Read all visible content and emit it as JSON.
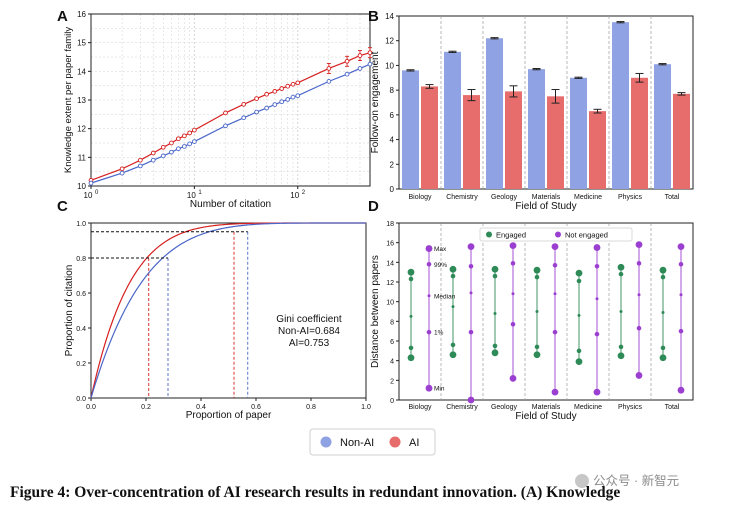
{
  "figure": {
    "caption": "Figure 4:  Over-concentration of AI research results in redundant innovation. (A) Knowledge",
    "watermark": "公众号 · 新智元"
  },
  "colors": {
    "nonai": "#4a66c9",
    "ai": "#d62020",
    "nonai_bar": "#8fa2e3",
    "ai_bar": "#e76c6c",
    "engaged": "#2e8a57",
    "not_engaged": "#9b3fd1",
    "grid": "#d0d0d0",
    "axis": "#222222"
  },
  "legend": {
    "nonai_label": "Non-AI",
    "ai_label": "AI"
  },
  "chart_data": [
    {
      "panel": "A",
      "type": "line",
      "xscale": "log",
      "xlabel": "Number of citation",
      "ylabel": "Knowledge extent per paper family",
      "xlim": [
        1,
        500
      ],
      "ylim": [
        10,
        16
      ],
      "xtick_values": [
        1,
        10,
        100
      ],
      "xtick_labels": [
        "10^0",
        "10^1",
        "10^2"
      ],
      "ytick_labels": [
        "10",
        "11",
        "12",
        "13",
        "14",
        "15",
        "16"
      ],
      "series": [
        {
          "name": "AI",
          "x": [
            1,
            2,
            3,
            4,
            5,
            6,
            7,
            8,
            9,
            10,
            20,
            30,
            40,
            50,
            60,
            70,
            80,
            90,
            100,
            200,
            300,
            400,
            500
          ],
          "y": [
            10.2,
            10.6,
            10.9,
            11.15,
            11.35,
            11.5,
            11.65,
            11.75,
            11.85,
            11.95,
            12.55,
            12.85,
            13.05,
            13.2,
            13.3,
            13.4,
            13.48,
            13.55,
            13.6,
            14.1,
            14.35,
            14.55,
            14.65
          ]
        },
        {
          "name": "Non-AI",
          "x": [
            1,
            2,
            3,
            4,
            5,
            6,
            7,
            8,
            9,
            10,
            20,
            30,
            40,
            50,
            60,
            70,
            80,
            90,
            100,
            200,
            300,
            400,
            500
          ],
          "y": [
            10.1,
            10.45,
            10.7,
            10.9,
            11.05,
            11.18,
            11.3,
            11.38,
            11.47,
            11.55,
            12.1,
            12.38,
            12.58,
            12.72,
            12.84,
            12.94,
            13.02,
            13.1,
            13.15,
            13.65,
            13.9,
            14.1,
            14.25
          ]
        }
      ]
    },
    {
      "panel": "B",
      "type": "bar",
      "xlabel": "Field of Study",
      "ylabel": "Follow-on engagement",
      "ylim": [
        0,
        14
      ],
      "ytick_labels": [
        "0",
        "2",
        "4",
        "6",
        "8",
        "10",
        "12",
        "14"
      ],
      "categories": [
        "Biology",
        "Chemistry",
        "Geology",
        "Materials",
        "Medicine",
        "Physics",
        "Total"
      ],
      "series": [
        {
          "name": "Non-AI",
          "values": [
            9.6,
            11.1,
            12.2,
            9.7,
            9.0,
            13.5,
            10.1
          ],
          "errors": [
            0.05,
            0.05,
            0.05,
            0.05,
            0.05,
            0.05,
            0.05
          ]
        },
        {
          "name": "AI",
          "values": [
            8.3,
            7.6,
            7.9,
            7.5,
            6.3,
            9.0,
            7.7
          ],
          "errors": [
            0.15,
            0.45,
            0.45,
            0.55,
            0.15,
            0.35,
            0.1
          ]
        }
      ]
    },
    {
      "panel": "C",
      "type": "line",
      "xlabel": "Proportion of paper",
      "ylabel": "Proportion of citation",
      "xlim": [
        0,
        1
      ],
      "ylim": [
        0,
        1
      ],
      "xtick_labels": [
        "0.0",
        "0.2",
        "0.4",
        "0.6",
        "0.8",
        "1.0"
      ],
      "ytick_labels": [
        "0.0",
        "0.2",
        "0.4",
        "0.6",
        "0.8",
        "1.0"
      ],
      "annotation_title": "Gini coefficient",
      "annotation_nonai": "Non-AI=0.684",
      "annotation_ai": "AI=0.753",
      "series": [
        {
          "name": "AI",
          "gini": 0.753,
          "markers": [
            {
              "x": 0.21,
              "y": 0.8
            },
            {
              "x": 0.52,
              "y": 0.95
            }
          ]
        },
        {
          "name": "Non-AI",
          "gini": 0.684,
          "markers": [
            {
              "x": 0.28,
              "y": 0.8
            },
            {
              "x": 0.57,
              "y": 0.95
            }
          ]
        }
      ]
    },
    {
      "panel": "D",
      "type": "scatter",
      "xlabel": "Field of Study",
      "ylabel": "Distance between papers",
      "ylim": [
        0,
        18
      ],
      "ytick_labels": [
        "0",
        "2",
        "4",
        "6",
        "8",
        "10",
        "12",
        "14",
        "16",
        "18"
      ],
      "categories": [
        "Biology",
        "Chemistry",
        "Geology",
        "Materials",
        "Medicine",
        "Physics",
        "Total"
      ],
      "legend_engaged": "Engaged",
      "legend_not_engaged": "Not engaged",
      "stat_labels": [
        "Max",
        "99%",
        "Median",
        "1%",
        "Min"
      ],
      "series": [
        {
          "name": "Engaged",
          "points": [
            [
              4.3,
              5.3,
              8.5,
              12.3,
              13.0
            ],
            [
              4.6,
              5.6,
              9.5,
              12.6,
              13.3
            ],
            [
              4.8,
              5.5,
              8.8,
              12.6,
              13.3
            ],
            [
              4.6,
              5.4,
              9.0,
              12.5,
              13.2
            ],
            [
              3.9,
              5.0,
              8.6,
              12.1,
              12.9
            ],
            [
              4.5,
              5.4,
              9.0,
              12.8,
              13.5
            ],
            [
              4.3,
              5.3,
              8.9,
              12.5,
              13.2
            ]
          ]
        },
        {
          "name": "Not engaged",
          "points": [
            [
              1.2,
              6.9,
              10.6,
              13.8,
              15.4
            ],
            [
              0.0,
              6.9,
              10.9,
              13.6,
              15.6
            ],
            [
              2.2,
              7.7,
              10.8,
              13.9,
              15.7
            ],
            [
              0.8,
              6.9,
              10.8,
              13.7,
              15.6
            ],
            [
              0.8,
              6.7,
              10.3,
              13.6,
              15.5
            ],
            [
              2.5,
              7.3,
              10.7,
              13.9,
              15.8
            ],
            [
              1.0,
              7.0,
              10.7,
              13.8,
              15.6
            ]
          ]
        }
      ]
    }
  ]
}
